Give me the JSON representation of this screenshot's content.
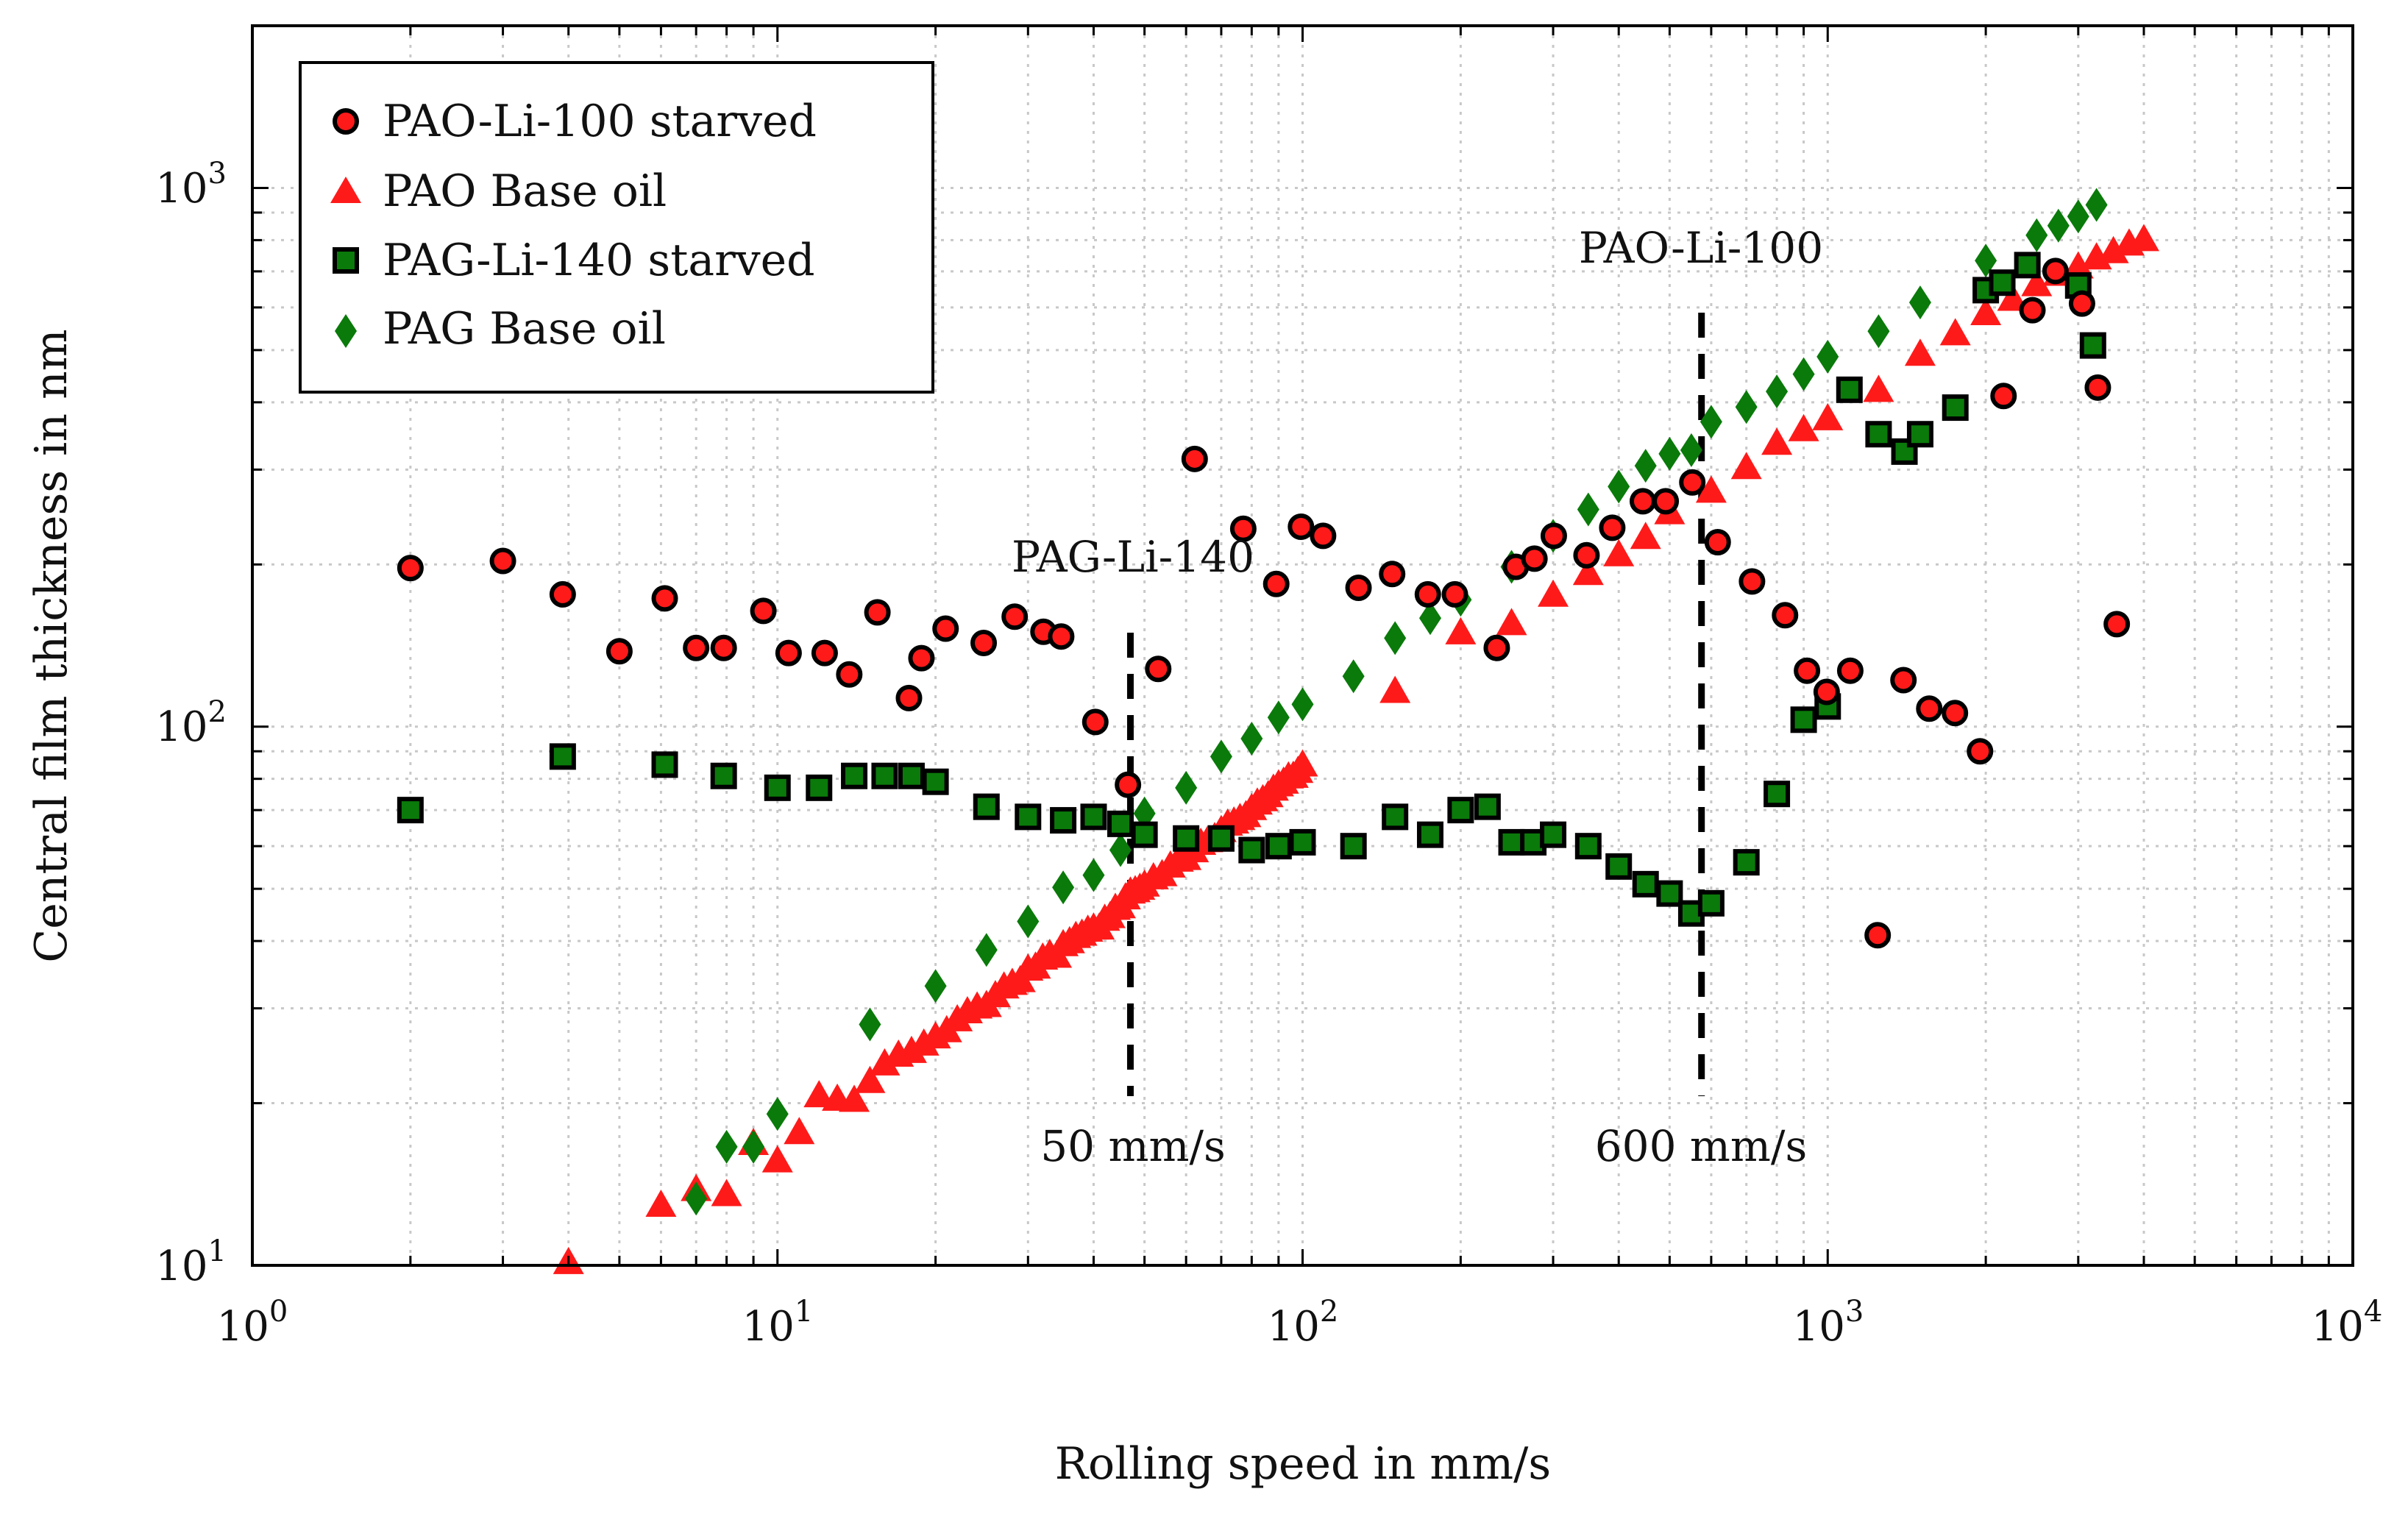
{
  "chart_data": {
    "type": "scatter",
    "title": "",
    "xlabel": "Rolling speed in mm/s",
    "ylabel": "Central film thickness in nm",
    "xscale": "log",
    "yscale": "log",
    "xlim": [
      1,
      10000
    ],
    "ylim": [
      10,
      2000
    ],
    "grid": true,
    "legend_position": "top-left",
    "x_ticks": [
      {
        "base": "10",
        "exp": "0",
        "value": 1
      },
      {
        "base": "10",
        "exp": "1",
        "value": 10
      },
      {
        "base": "10",
        "exp": "2",
        "value": 100
      },
      {
        "base": "10",
        "exp": "3",
        "value": 1000
      },
      {
        "base": "10",
        "exp": "4",
        "value": 10000
      }
    ],
    "y_ticks": [
      {
        "base": "10",
        "exp": "1",
        "value": 10
      },
      {
        "base": "10",
        "exp": "2",
        "value": 100
      },
      {
        "base": "10",
        "exp": "3",
        "value": 1000
      }
    ],
    "series": [
      {
        "name": "PAO-Li-100 starved",
        "marker": "circle",
        "color": "#ff1a1a",
        "edge": "#000000",
        "x": [
          2,
          3,
          3.9,
          5,
          6.1,
          7,
          7.9,
          9.4,
          10.5,
          12.3,
          13.7,
          15.5,
          17.8,
          18.8,
          20.9,
          24.7,
          28.3,
          32.1,
          34.7,
          40.3,
          46.5,
          53.1,
          62.3,
          77.1,
          89.1,
          99.3,
          109.4,
          127.8,
          148.1,
          173.2,
          195,
          234.3,
          254.8,
          276.4,
          300.9,
          347.3,
          388.8,
          444.6,
          491.5,
          552.3,
          617.4,
          717.6,
          829.4,
          913.2,
          995.5,
          1104,
          1245,
          1394,
          1561,
          1747,
          1950,
          2162,
          2454,
          2715,
          3050,
          3269,
          3552
        ],
        "y": [
          197,
          203,
          176,
          138,
          173,
          140,
          140,
          164,
          137,
          137,
          125,
          163,
          113,
          134,
          152,
          143,
          160,
          150,
          147,
          102,
          78,
          128,
          314,
          233,
          184,
          235,
          226,
          181,
          192,
          176,
          176,
          140,
          198,
          205,
          226,
          208,
          234,
          262,
          262,
          284,
          220,
          186,
          161,
          127,
          116,
          127,
          41,
          122,
          108,
          106,
          90,
          411,
          593,
          701,
          610,
          426,
          155
        ]
      },
      {
        "name": "PAO Base oil",
        "marker": "triangle",
        "color": "#ff1a1a",
        "edge": "none",
        "x": [
          4,
          6,
          7,
          8,
          9,
          10,
          11,
          12,
          13,
          14,
          15,
          16,
          17,
          18,
          19,
          20,
          21,
          22,
          23,
          24,
          25,
          26,
          27,
          28,
          29,
          30,
          31,
          32,
          33,
          34,
          35,
          36,
          37,
          38,
          39,
          40,
          41,
          42,
          43,
          44,
          45,
          46,
          47,
          48,
          49,
          50,
          52,
          54,
          56,
          58,
          60,
          62,
          64,
          66,
          68,
          70,
          72,
          74,
          76,
          78,
          80,
          82,
          84,
          86,
          88,
          90,
          92,
          94,
          96,
          98,
          100,
          150,
          200,
          250,
          300,
          350,
          400,
          450,
          500,
          600,
          700,
          800,
          900,
          1000,
          1250,
          1500,
          1750,
          2000,
          2250,
          2500,
          2750,
          3000,
          3250,
          3500,
          3750,
          4000
        ],
        "y": [
          10.1,
          12.9,
          13.8,
          13.5,
          16.8,
          15.6,
          17.6,
          20.6,
          20.3,
          20.2,
          21.9,
          23.6,
          24.5,
          24.9,
          25.7,
          26.5,
          27.2,
          28.5,
          29.5,
          30.1,
          30.3,
          31.6,
          32.8,
          33.3,
          33.7,
          35.4,
          35.7,
          37.1,
          37.7,
          37.4,
          39.3,
          39.8,
          40.7,
          41.1,
          41.8,
          42.2,
          42.2,
          43.8,
          44.3,
          45.9,
          46.2,
          48.0,
          49.2,
          49.5,
          50.0,
          50.7,
          52.3,
          53.0,
          55.0,
          56.4,
          56.8,
          58.7,
          60.6,
          61.3,
          62.1,
          64.0,
          65.8,
          66.4,
          67.4,
          68.2,
          70.3,
          72.0,
          73.0,
          74.3,
          76.4,
          77.8,
          78.7,
          80.5,
          80.7,
          82.4,
          84.7,
          116,
          149,
          155,
          175,
          192,
          208,
          224,
          249,
          273,
          302,
          335,
          355,
          372,
          420,
          490,
          535,
          583,
          620,
          660,
          690,
          712,
          740,
          760,
          785,
          800
        ]
      },
      {
        "name": "PAG-Li-140 starved",
        "marker": "square",
        "color": "#0a7a0a",
        "edge": "#000000",
        "x": [
          2,
          3.9,
          6.1,
          7.9,
          10,
          12,
          14,
          16,
          18,
          20,
          25,
          30,
          35,
          40,
          45,
          50,
          60,
          70,
          80,
          90,
          100,
          125,
          150,
          175,
          200,
          225,
          250,
          275,
          300,
          350,
          400,
          450,
          500,
          550,
          600,
          700,
          800,
          900,
          1000,
          1100,
          1250,
          1400,
          1500,
          1750,
          2000,
          2150,
          2400,
          3000,
          3200
        ],
        "y": [
          70,
          88,
          85,
          81,
          77,
          77,
          81,
          81,
          81,
          79,
          71,
          68,
          67,
          68,
          66,
          63,
          62,
          62,
          59,
          60,
          61,
          60,
          68,
          63,
          70,
          71,
          61,
          61,
          63,
          60,
          55,
          51,
          49,
          45,
          47,
          56,
          75,
          103,
          109,
          422,
          349,
          324,
          349,
          391,
          646,
          667,
          719,
          659,
          510
        ]
      },
      {
        "name": "PAG Base oil",
        "marker": "diamond",
        "color": "#0a7a0a",
        "edge": "none",
        "x": [
          7,
          8,
          9,
          10,
          15,
          20,
          25,
          30,
          35,
          40,
          45,
          50,
          60,
          70,
          80,
          90,
          100,
          125,
          150,
          175,
          200,
          250,
          300,
          350,
          400,
          450,
          500,
          550,
          600,
          700,
          800,
          900,
          1000,
          1250,
          1500,
          2000,
          2500,
          2750,
          3000,
          3250
        ],
        "y": [
          13.3,
          16.6,
          16.6,
          19.1,
          28,
          33,
          38.5,
          43.5,
          50.3,
          53,
          59,
          69,
          77,
          88,
          95,
          104,
          110,
          124,
          146,
          159,
          172,
          198,
          226,
          253,
          279,
          305,
          321,
          326,
          368,
          392,
          419,
          451,
          486,
          542,
          613,
          733,
          817,
          851,
          885,
          930
        ]
      }
    ],
    "annotations": [
      {
        "text": "PAG-Li-140",
        "x": 47
      },
      {
        "text": "50 mm/s",
        "x": 47
      },
      {
        "text": "PAO-Li-100",
        "x": 575
      },
      {
        "text": "600 mm/s",
        "x": 575
      }
    ]
  }
}
